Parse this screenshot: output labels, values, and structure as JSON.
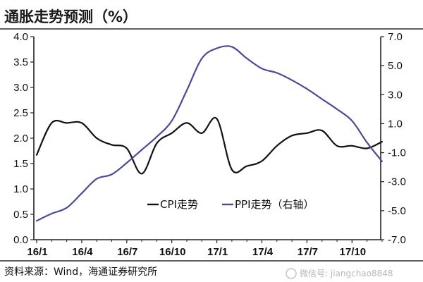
{
  "chart_data": {
    "type": "line",
    "title": "通胀走势预测（%）",
    "x_categories": [
      "16/1",
      "16/4",
      "16/7",
      "16/10",
      "17/1",
      "17/4",
      "17/7",
      "17/10"
    ],
    "y_left": {
      "min": 0.0,
      "max": 4.0,
      "ticks": [
        "0.0",
        "0.5",
        "1.0",
        "1.5",
        "2.0",
        "2.5",
        "3.0",
        "3.5",
        "4.0"
      ]
    },
    "y_right": {
      "min": -7.0,
      "max": 7.0,
      "ticks": [
        "-7.0",
        "-5.0",
        "-3.0",
        "-1.0",
        "1.0",
        "3.0",
        "5.0",
        "7.0"
      ]
    },
    "grid": false,
    "legend_position": "bottom-center",
    "series": [
      {
        "name": "CPI走势",
        "axis": "left",
        "color": "#111111",
        "x": [
          "2016-01",
          "2016-02",
          "2016-03",
          "2016-04",
          "2016-05",
          "2016-06",
          "2016-07",
          "2016-08",
          "2016-09",
          "2016-10",
          "2016-11",
          "2016-12",
          "2017-01",
          "2017-02",
          "2017-03",
          "2017-04",
          "2017-05",
          "2017-06",
          "2017-07",
          "2017-08",
          "2017-09",
          "2017-10",
          "2017-11",
          "2017-12"
        ],
        "values": [
          1.67,
          2.3,
          2.3,
          2.3,
          2.0,
          1.87,
          1.8,
          1.3,
          1.9,
          2.1,
          2.3,
          2.1,
          2.38,
          1.38,
          1.45,
          1.55,
          1.85,
          2.05,
          2.1,
          2.15,
          1.85,
          1.85,
          1.8,
          1.93
        ]
      },
      {
        "name": "PPI走势（右轴）",
        "axis": "right",
        "color": "#4a4a96",
        "x": [
          "2016-01",
          "2016-02",
          "2016-03",
          "2016-04",
          "2016-05",
          "2016-06",
          "2016-07",
          "2016-08",
          "2016-09",
          "2016-10",
          "2016-11",
          "2016-12",
          "2017-01",
          "2017-02",
          "2017-03",
          "2017-04",
          "2017-05",
          "2017-06",
          "2017-07",
          "2017-08",
          "2017-09",
          "2017-10",
          "2017-11",
          "2017-12"
        ],
        "values": [
          -5.7,
          -5.2,
          -4.8,
          -3.8,
          -2.8,
          -2.5,
          -1.7,
          -0.8,
          0.1,
          1.2,
          3.3,
          5.5,
          6.2,
          6.3,
          5.5,
          4.8,
          4.5,
          4.0,
          3.4,
          2.7,
          2.0,
          1.2,
          -0.3,
          -1.6
        ]
      }
    ]
  },
  "source": "资料来源：Wind，海通证券研究所",
  "watermark": "微信号: jiangchao8848"
}
